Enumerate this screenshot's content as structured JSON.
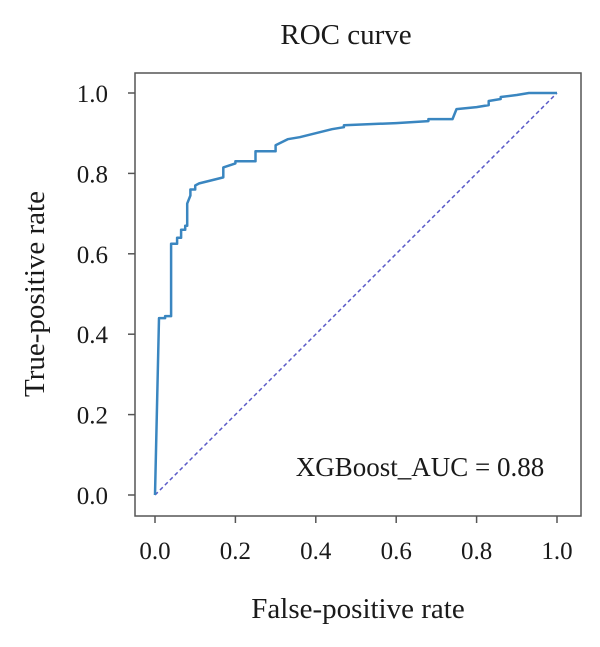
{
  "chart_data": {
    "type": "line",
    "title": "ROC curve",
    "xlabel": "False-positive rate",
    "ylabel": "True-positive rate",
    "xlim": [
      0.0,
      1.0
    ],
    "ylim": [
      0.0,
      1.0
    ],
    "x_ticks": [
      "0.0",
      "0.2",
      "0.4",
      "0.6",
      "0.8",
      "1.0"
    ],
    "y_ticks": [
      "0.0",
      "0.2",
      "0.4",
      "0.6",
      "0.8",
      "1.0"
    ],
    "grid": false,
    "annotation": "XGBoost_AUC = 0.88",
    "colors": {
      "roc": "#3a86c0",
      "diagonal": "#5a5ac8",
      "frame": "#555555"
    },
    "series": [
      {
        "style": "solid",
        "points": [
          [
            0.0,
            0.0
          ],
          [
            0.01,
            0.44
          ],
          [
            0.025,
            0.44
          ],
          [
            0.025,
            0.445
          ],
          [
            0.04,
            0.445
          ],
          [
            0.04,
            0.625
          ],
          [
            0.055,
            0.625
          ],
          [
            0.055,
            0.64
          ],
          [
            0.065,
            0.64
          ],
          [
            0.065,
            0.66
          ],
          [
            0.075,
            0.66
          ],
          [
            0.075,
            0.67
          ],
          [
            0.08,
            0.67
          ],
          [
            0.08,
            0.725
          ],
          [
            0.088,
            0.745
          ],
          [
            0.088,
            0.76
          ],
          [
            0.1,
            0.76
          ],
          [
            0.1,
            0.77
          ],
          [
            0.11,
            0.775
          ],
          [
            0.15,
            0.785
          ],
          [
            0.17,
            0.79
          ],
          [
            0.17,
            0.815
          ],
          [
            0.2,
            0.825
          ],
          [
            0.2,
            0.83
          ],
          [
            0.25,
            0.83
          ],
          [
            0.25,
            0.855
          ],
          [
            0.3,
            0.855
          ],
          [
            0.3,
            0.87
          ],
          [
            0.33,
            0.885
          ],
          [
            0.36,
            0.89
          ],
          [
            0.4,
            0.9
          ],
          [
            0.44,
            0.91
          ],
          [
            0.47,
            0.915
          ],
          [
            0.47,
            0.92
          ],
          [
            0.6,
            0.925
          ],
          [
            0.68,
            0.93
          ],
          [
            0.68,
            0.935
          ],
          [
            0.74,
            0.935
          ],
          [
            0.75,
            0.96
          ],
          [
            0.8,
            0.965
          ],
          [
            0.83,
            0.97
          ],
          [
            0.83,
            0.98
          ],
          [
            0.86,
            0.985
          ],
          [
            0.86,
            0.99
          ],
          [
            0.9,
            0.995
          ],
          [
            0.93,
            1.0
          ],
          [
            1.0,
            1.0
          ]
        ]
      },
      {
        "style": "dashed",
        "points": [
          [
            0.0,
            0.0
          ],
          [
            1.0,
            1.0
          ]
        ]
      }
    ]
  }
}
